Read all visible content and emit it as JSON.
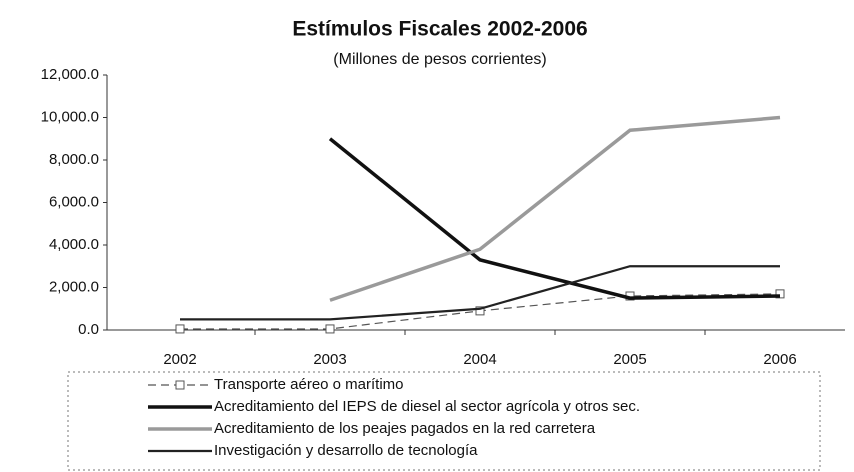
{
  "chart_data": {
    "type": "line",
    "title": "Estímulos Fiscales 2002-2006",
    "subtitle": "(Millones de pesos corrientes)",
    "categories": [
      "2002",
      "2003",
      "2004",
      "2005",
      "2006"
    ],
    "series": [
      {
        "name": "Transporte aéreo o marítimo",
        "color": "#555555",
        "line_style": "dashed",
        "marker": "square",
        "linewidth": 1.2,
        "values": [
          50,
          50,
          900,
          1600,
          1700
        ]
      },
      {
        "name": "Acreditamiento del IEPS de diesel al sector agrícola y otros sec.",
        "color": "#111111",
        "line_style": "solid",
        "linewidth": 3.5,
        "values": [
          null,
          9000,
          3300,
          1500,
          1600
        ]
      },
      {
        "name": "Acreditamiento de los peajes pagados en la red carretera",
        "color": "#9a9a9a",
        "line_style": "solid",
        "linewidth": 3.5,
        "values": [
          null,
          1400,
          3800,
          9400,
          10000
        ]
      },
      {
        "name": "Investigación y desarrollo de tecnología",
        "color": "#222222",
        "line_style": "solid",
        "linewidth": 2.2,
        "values": [
          500,
          500,
          1000,
          3000,
          3000
        ]
      }
    ],
    "ylim": [
      0,
      12000
    ],
    "yticks": [
      {
        "value": 0,
        "label": "0.0"
      },
      {
        "value": 2000,
        "label": "2,000.0"
      },
      {
        "value": 4000,
        "label": "4,000.0"
      },
      {
        "value": 6000,
        "label": "6,000.0"
      },
      {
        "value": 8000,
        "label": "8,000.0"
      },
      {
        "value": 10000,
        "label": "10,000.0"
      },
      {
        "value": 12000,
        "label": "12,000.0"
      }
    ],
    "grid": false
  }
}
